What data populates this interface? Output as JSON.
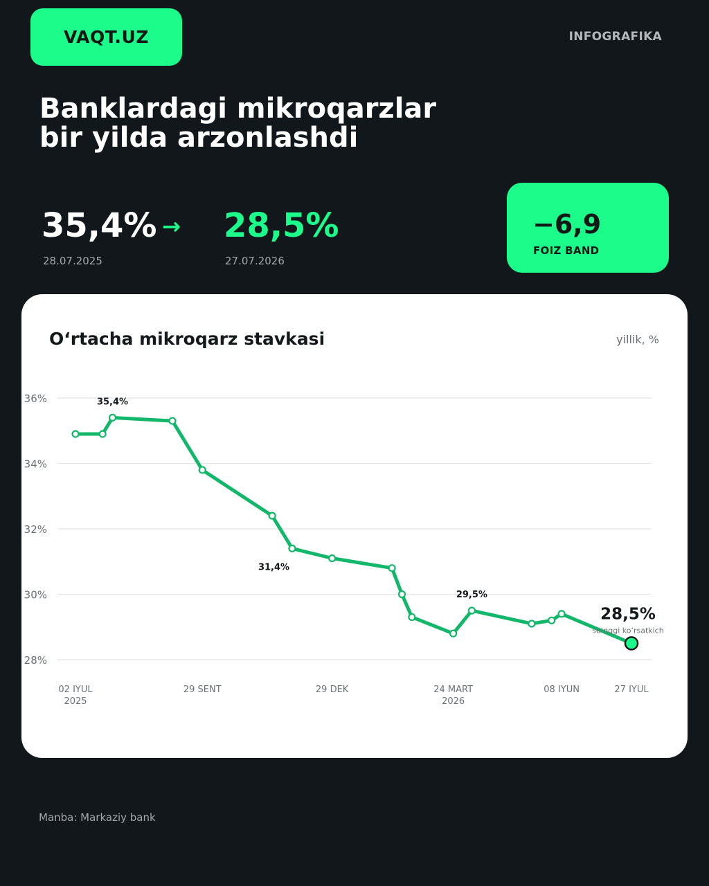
{
  "brand": {
    "logo": "VAQT.UZ",
    "tag": "INFOGRAFIKA"
  },
  "headline": "Banklardagi mikroqarzlar\nbir yilda arzonlashdi",
  "summary": {
    "old_value": "35,4%",
    "arrow": "→",
    "new_value": "28,5%",
    "old_date": "28.07.2025",
    "new_date": "27.07.2026",
    "delta_value": "−6,9",
    "delta_label": "FOIZ BAND"
  },
  "card": {
    "title": "O‘rtacha mikroqarz stavkasi",
    "unit": "yillik, %"
  },
  "source": "Manba: Markaziy bank",
  "colors": {
    "background": "#12171b",
    "accent": "#1cfc8b",
    "line": "#12b76a",
    "card": "#ffffff"
  },
  "chart_data": {
    "type": "line",
    "title": "O‘rtacha mikroqarz stavkasi",
    "ylabel": "yillik, %",
    "ylim": [
      28,
      36
    ],
    "yticks": [
      36,
      34,
      32,
      30,
      28
    ],
    "ytick_labels": [
      "36%",
      "34%",
      "32%",
      "30%",
      "28%"
    ],
    "xlim": [
      "2025-07-02",
      "2026-07-27"
    ],
    "xticks": [
      {
        "date": "2025-07-02",
        "label": "02 IYUL",
        "sublabel": "2025"
      },
      {
        "date": "2025-09-29",
        "label": "29 SENT",
        "sublabel": ""
      },
      {
        "date": "2025-12-29",
        "label": "29 DEK",
        "sublabel": ""
      },
      {
        "date": "2026-03-24",
        "label": "24 MART",
        "sublabel": "2026"
      },
      {
        "date": "2026-06-08",
        "label": "08 IYUN",
        "sublabel": ""
      },
      {
        "date": "2026-07-27",
        "label": "27 IYUL",
        "sublabel": ""
      }
    ],
    "points": [
      {
        "x": "2025-07-02",
        "y": 34.9
      },
      {
        "x": "2025-07-21",
        "y": 34.9
      },
      {
        "x": "2025-07-28",
        "y": 35.4
      },
      {
        "x": "2025-09-08",
        "y": 35.3
      },
      {
        "x": "2025-09-29",
        "y": 33.8
      },
      {
        "x": "2025-11-17",
        "y": 32.4
      },
      {
        "x": "2025-12-01",
        "y": 31.4
      },
      {
        "x": "2025-12-29",
        "y": 31.1
      },
      {
        "x": "2026-02-09",
        "y": 30.8
      },
      {
        "x": "2026-02-16",
        "y": 30.0
      },
      {
        "x": "2026-02-23",
        "y": 29.3
      },
      {
        "x": "2026-03-24",
        "y": 28.8
      },
      {
        "x": "2026-04-06",
        "y": 29.5
      },
      {
        "x": "2026-05-18",
        "y": 29.1
      },
      {
        "x": "2026-06-01",
        "y": 29.2
      },
      {
        "x": "2026-06-08",
        "y": 29.4
      },
      {
        "x": "2026-07-27",
        "y": 28.5
      }
    ],
    "annotations": [
      {
        "point": 2,
        "text": "35,4%",
        "position": "above"
      },
      {
        "point": 6,
        "text": "31,4%",
        "position": "left"
      },
      {
        "point": 12,
        "text": "29,5%",
        "position": "above"
      }
    ],
    "latest": {
      "value_label": "28,5%",
      "caption": "so‘nggi ko‘rsatkich"
    },
    "grid": true,
    "legend": false
  }
}
